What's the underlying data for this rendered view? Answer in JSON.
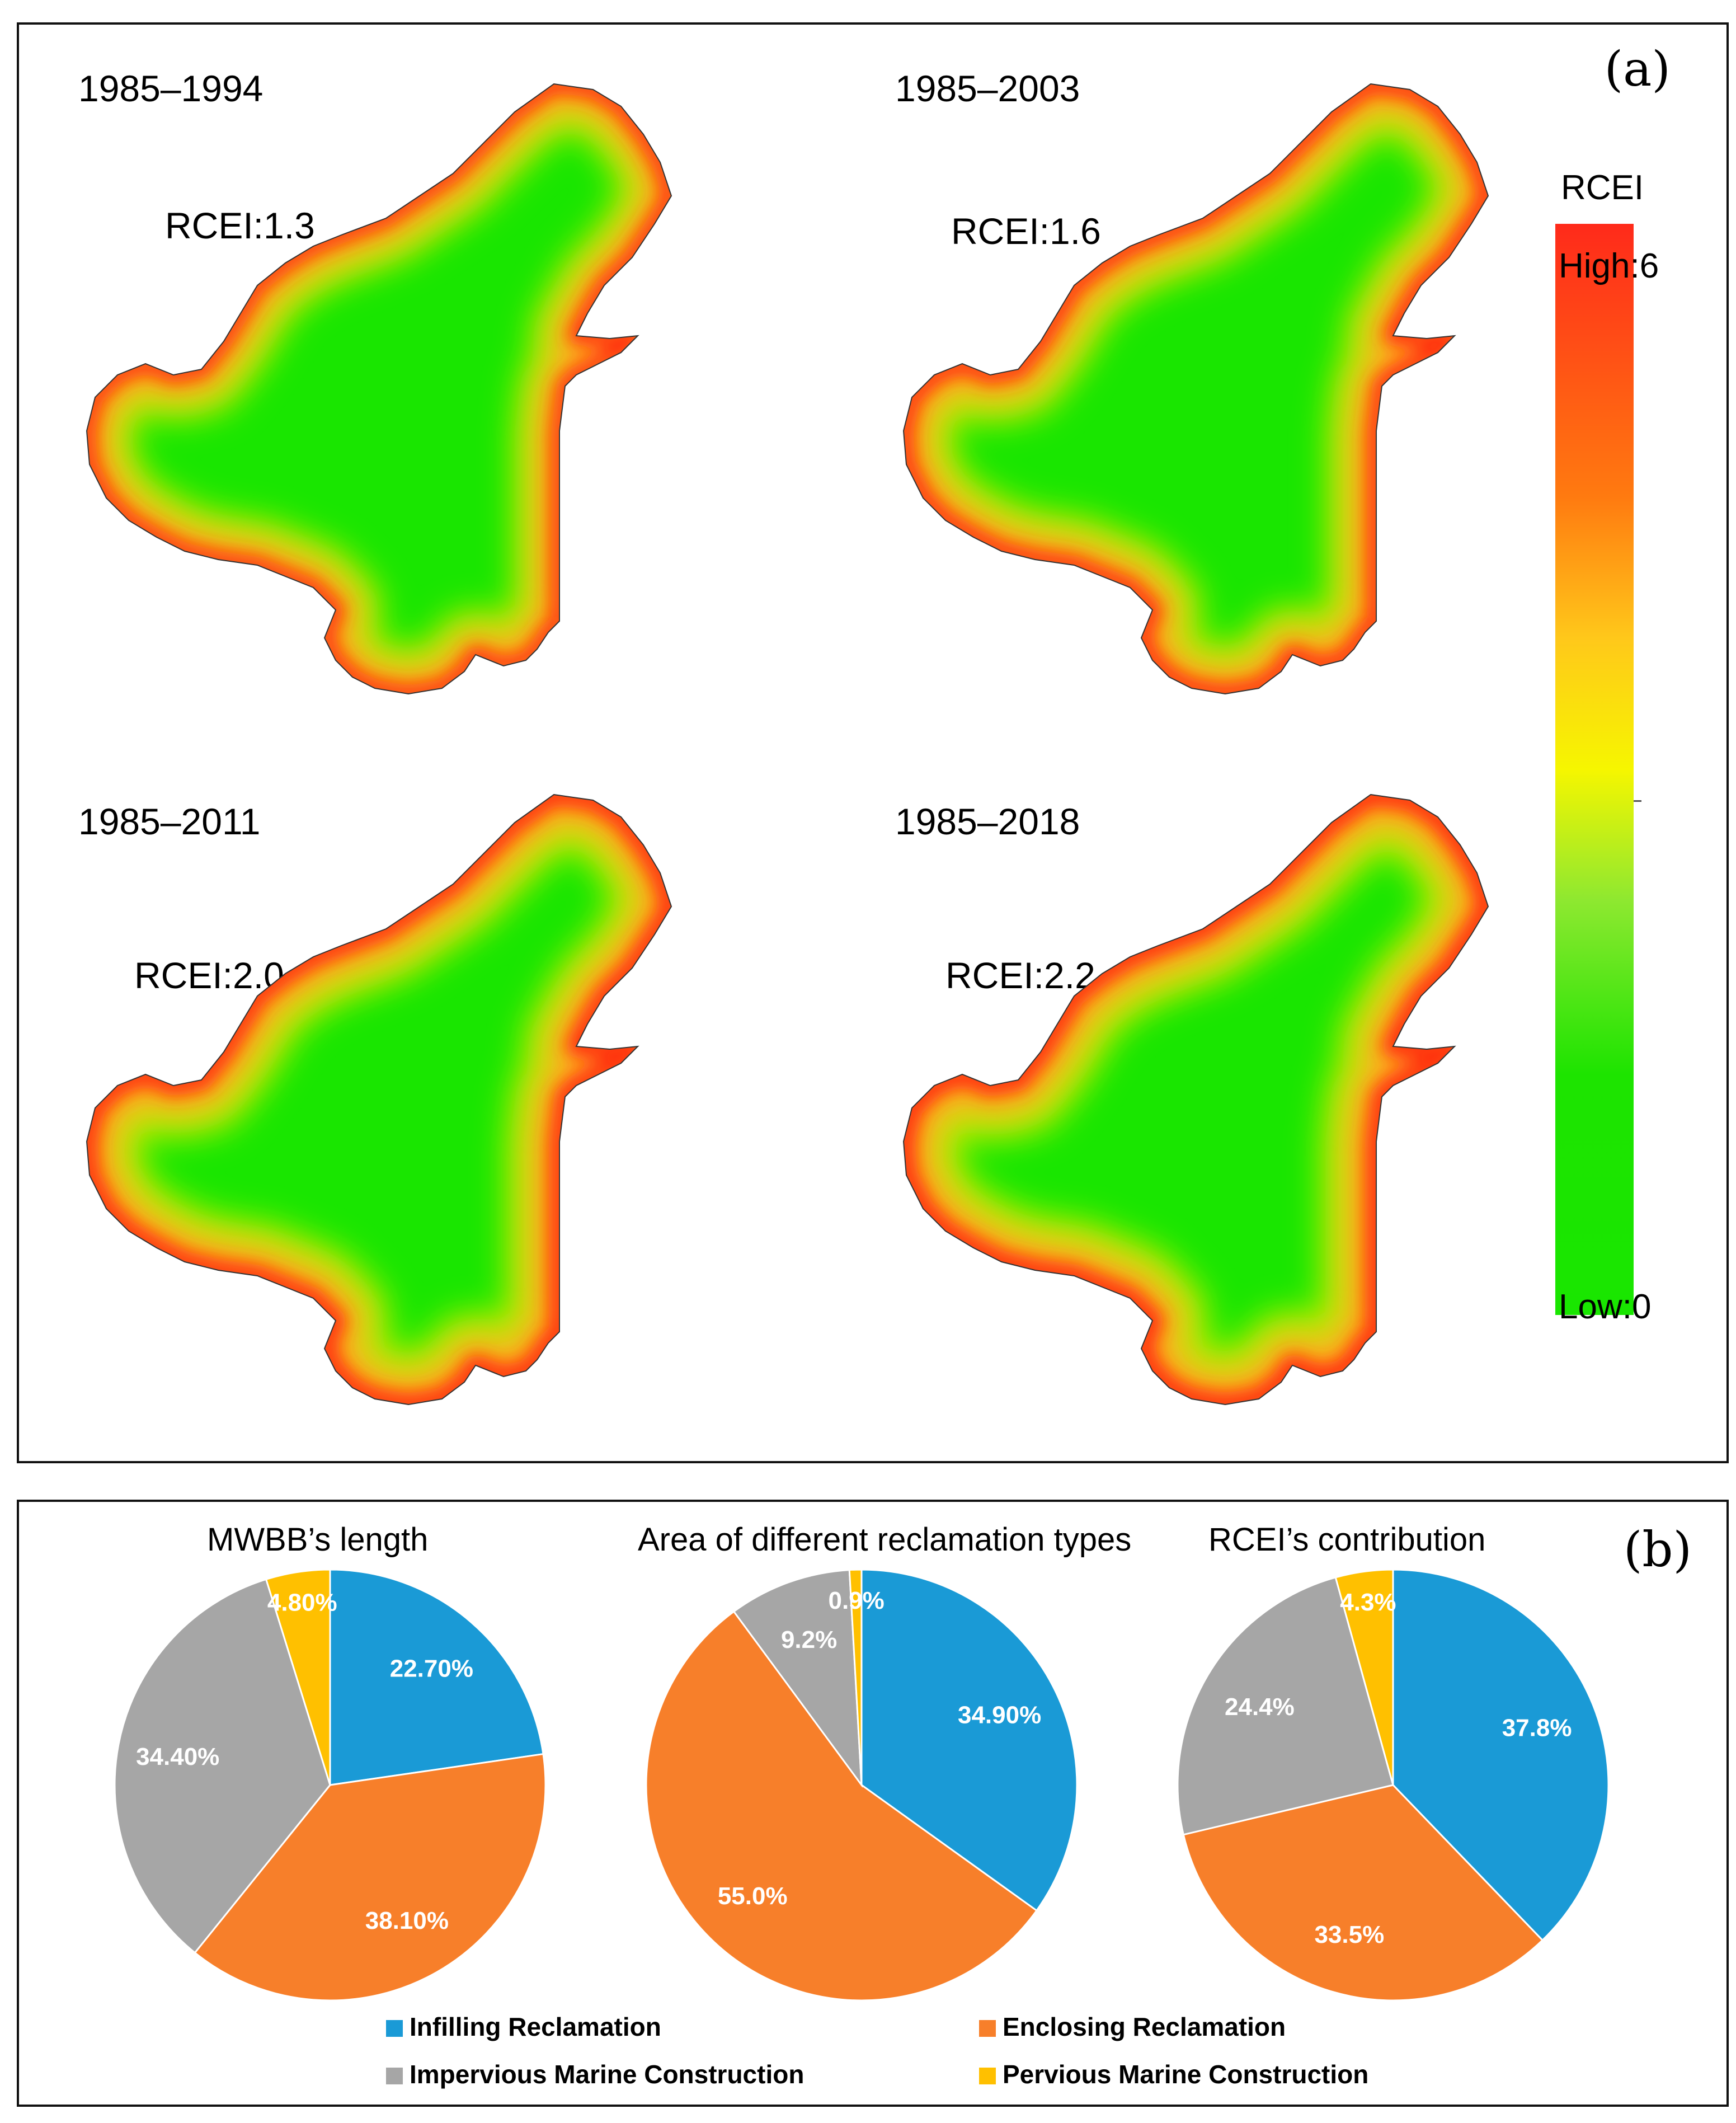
{
  "panel_a": {
    "label": "(a)",
    "maps": [
      {
        "period": "1985–1994",
        "rcei": "RCEI:1.3",
        "value": 1.3
      },
      {
        "period": "1985–2003",
        "rcei": "RCEI:1.6",
        "value": 1.6
      },
      {
        "period": "1985–2011",
        "rcei": "RCEI:2.0",
        "value": 2.0
      },
      {
        "period": "1985–2018",
        "rcei": "RCEI:2.2",
        "value": 2.2
      }
    ],
    "colorbar": {
      "title": "RCEI",
      "high_label": "High:6",
      "low_label": "Low:0",
      "range": [
        0,
        6
      ],
      "colors": {
        "low": "#19e600",
        "mid": "#f6f600",
        "high": "#ff2a1a"
      }
    }
  },
  "panel_b": {
    "label": "(b)"
  },
  "chart_data": [
    {
      "type": "pie",
      "title": "MWBB’s length",
      "categories": [
        "Infilling Reclamation",
        "Enclosing Reclamation",
        "Impervious Marine Construction",
        "Pervious Marine Construction"
      ],
      "values": [
        22.7,
        38.1,
        34.4,
        4.8
      ],
      "labels": [
        "22.70%",
        "38.10%",
        "34.40%",
        "4.80%"
      ]
    },
    {
      "type": "pie",
      "title": "Area of different reclamation types",
      "categories": [
        "Infilling Reclamation",
        "Enclosing Reclamation",
        "Impervious Marine Construction",
        "Pervious Marine Construction"
      ],
      "values": [
        34.9,
        55.0,
        9.2,
        0.9
      ],
      "labels": [
        "34.90%",
        "55.0%",
        "9.2%",
        "0.9%"
      ]
    },
    {
      "type": "pie",
      "title": "RCEI’s contribution",
      "categories": [
        "Infilling Reclamation",
        "Enclosing Reclamation",
        "Impervious Marine Construction",
        "Pervious Marine Construction"
      ],
      "values": [
        37.8,
        33.5,
        24.4,
        4.3
      ],
      "labels": [
        "37.8%",
        "33.5%",
        "24.4%",
        "4.3%"
      ]
    }
  ],
  "legend": [
    {
      "label": "Infilling Reclamation",
      "color": "#1a9ad6"
    },
    {
      "label": "Enclosing Reclamation",
      "color": "#f77f2a"
    },
    {
      "label": "Impervious Marine Construction",
      "color": "#a6a6a6"
    },
    {
      "label": "Pervious Marine Construction",
      "color": "#ffc000"
    }
  ]
}
